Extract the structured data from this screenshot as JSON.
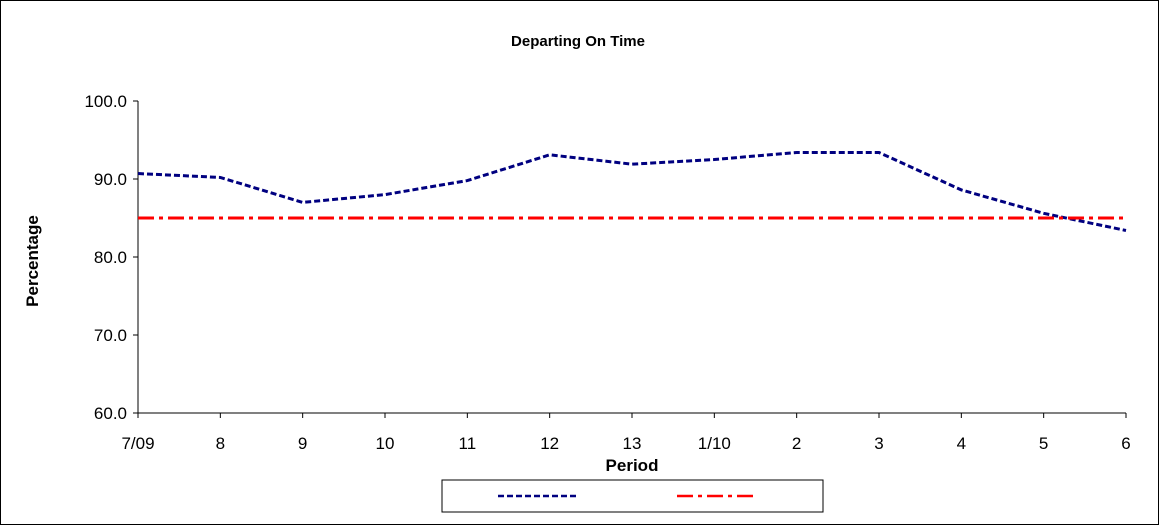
{
  "chart_data": {
    "type": "line",
    "title": "Departing On Time",
    "xlabel": "Period",
    "ylabel": "Percentage",
    "categories": [
      "7/09",
      "8",
      "9",
      "10",
      "11",
      "12",
      "13",
      "1/10",
      "2",
      "3",
      "4",
      "5",
      "6"
    ],
    "ylim": [
      60.0,
      100.0
    ],
    "yticks": [
      "60.0",
      "70.0",
      "80.0",
      "90.0",
      "100.0"
    ],
    "grid": false,
    "legend_position": "bottom",
    "series": [
      {
        "name": "",
        "color": "#000080",
        "style": "dashed",
        "values": [
          90.7,
          90.2,
          87.0,
          88.0,
          89.8,
          93.1,
          91.9,
          92.5,
          93.4,
          93.4,
          88.6,
          85.6,
          83.4
        ]
      },
      {
        "name": "",
        "color": "#ff0000",
        "style": "dash-dot",
        "values": [
          85.0,
          85.0,
          85.0,
          85.0,
          85.0,
          85.0,
          85.0,
          85.0,
          85.0,
          85.0,
          85.0,
          85.0,
          85.0
        ]
      }
    ]
  }
}
